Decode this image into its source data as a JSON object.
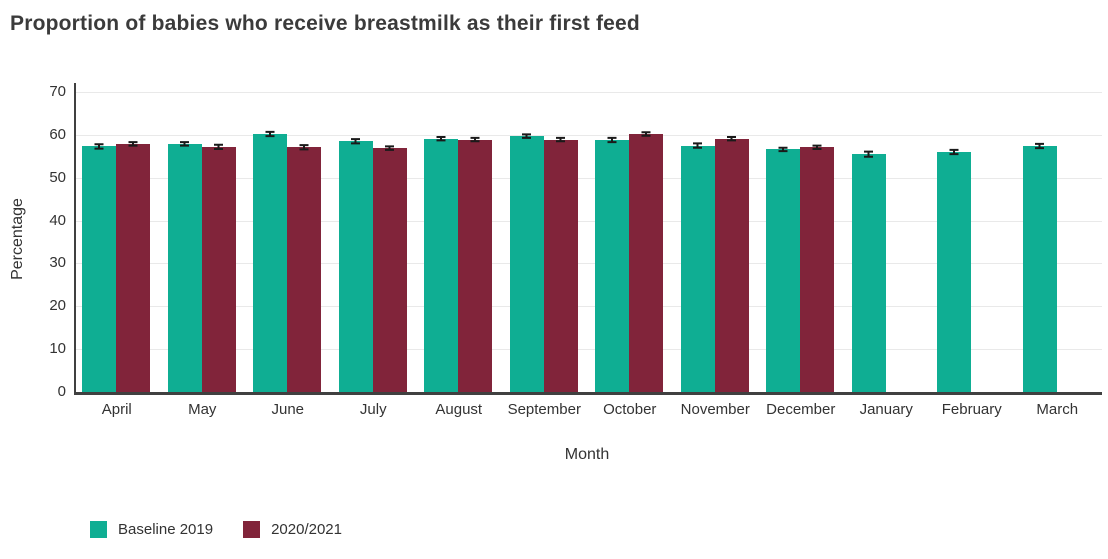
{
  "page_title": "Proportion of babies who receive breastmilk as their first feed",
  "colors": {
    "baseline_series": "#0fae93",
    "current_series": "#81243a",
    "axis_line": "#404040",
    "gridline": "#e9e9e9",
    "text": "#333333",
    "title_text": "#3b3b3b",
    "error_bar": "#1a1a1a",
    "background": "#ffffff"
  },
  "chart_data": {
    "type": "bar",
    "title": "Proportion of babies who receive breastmilk as their first feed",
    "xlabel": "Month",
    "ylabel": "Percentage",
    "ylim": [
      0,
      70
    ],
    "yticks": [
      0,
      10,
      20,
      30,
      40,
      50,
      60,
      70
    ],
    "grid": "horizontal",
    "legend_position": "bottom-left",
    "error_bars": true,
    "categories": [
      "April",
      "May",
      "June",
      "July",
      "August",
      "September",
      "October",
      "November",
      "December",
      "January",
      "February",
      "March"
    ],
    "series": [
      {
        "name": "Baseline 2019",
        "color": "#0fae93",
        "values": [
          57.3,
          57.9,
          60.2,
          58.5,
          59.1,
          59.7,
          58.8,
          57.5,
          56.6,
          55.5,
          56.0,
          57.4
        ],
        "errors": [
          0.5,
          0.4,
          0.5,
          0.5,
          0.4,
          0.4,
          0.5,
          0.5,
          0.4,
          0.6,
          0.5,
          0.5
        ]
      },
      {
        "name": "2020/2021",
        "color": "#81243a",
        "values": [
          57.9,
          57.2,
          57.1,
          56.9,
          58.9,
          58.9,
          60.2,
          59.1,
          57.1,
          null,
          null,
          null
        ],
        "errors": [
          0.4,
          0.5,
          0.5,
          0.4,
          0.4,
          0.4,
          0.4,
          0.4,
          0.4,
          null,
          null,
          null
        ]
      }
    ]
  }
}
